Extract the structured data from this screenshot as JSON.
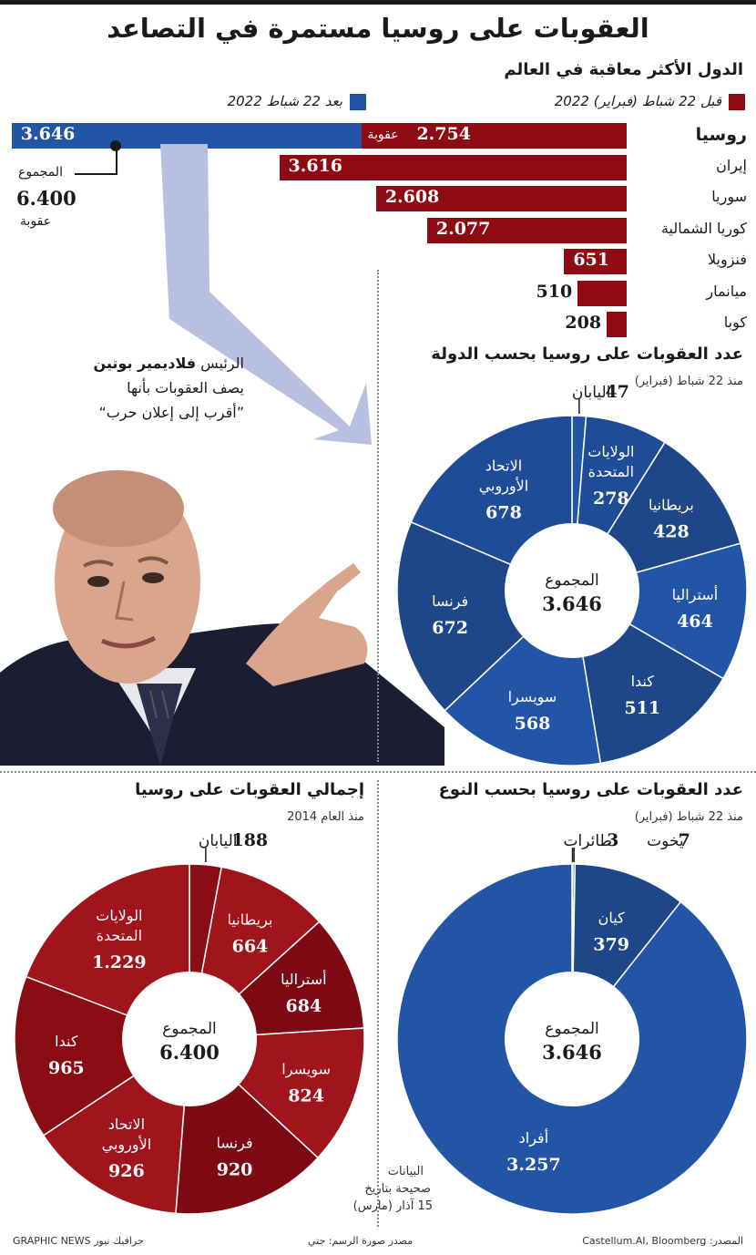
{
  "title": "العقوبات على روسيا مستمرة في التصاعد",
  "top_section": {
    "title": "الدول الأكثر معاقبة في العالم",
    "legend_before": "قبل 22 شباط (فبراير) 2022",
    "legend_after": "بعد 22 شباط 2022",
    "unit_label": "عقوبة",
    "total_label": "المجموع",
    "total_value": "6.400",
    "total_unit": "عقوبة",
    "after_value_label": "3.646"
  },
  "quote": {
    "line1_prefix": "الرئيس",
    "line1_name": "فلاديمير بوتين",
    "line2": "يصف العقوبات بأنها",
    "line3": "”أقرب إلى إعلان حرب“"
  },
  "pie_country_title": "عدد العقوبات على روسيا بحسب الدولة",
  "pie_country_subtitle": "منذ 22 شباط (فبراير)",
  "pie_type_title": "عدد العقوبات على روسيا بحسب النوع",
  "pie_type_subtitle": "منذ 22 شباط (فبراير)",
  "pie_total_title": "إجمالي العقوبات على روسيا",
  "pie_total_subtitle": "منذ العام 2014",
  "data_note": {
    "line1": "البيانات",
    "line2": "صحيحة بتاريخ",
    "line3": "15 آذار (مارس)"
  },
  "footer": {
    "brand": "جرافيك نيوز GRAPHIC NEWS",
    "photo": "مصدر صورة الرسم: جتي",
    "source": "المصدر: Castellum.AI, Bloomberg"
  },
  "colors": {
    "red": "#8f0b14",
    "red_alt": "#a0141c",
    "blue": "#2355a6",
    "blue_alt": "#1f4c97",
    "arrow": "#b7c0e0"
  },
  "chart_data": [
    {
      "type": "bar",
      "title": "الدول الأكثر معاقبة في العالم",
      "categories": [
        "روسيا",
        "إيران",
        "سوريا",
        "كوريا الشمالية",
        "فنزويلا",
        "ميانمار",
        "كوبا"
      ],
      "series": [
        {
          "name": "قبل 22 شباط (فبراير) 2022",
          "values": [
            2754,
            3616,
            2608,
            2077,
            651,
            510,
            208
          ],
          "labels": [
            "2.754",
            "3.616",
            "2.608",
            "2.077",
            "651",
            "510",
            "208"
          ]
        },
        {
          "name": "بعد 22 شباط 2022",
          "values": [
            3646,
            0,
            0,
            0,
            0,
            0,
            0
          ],
          "labels": [
            "3.646",
            "",
            "",
            "",
            "",
            "",
            ""
          ]
        }
      ],
      "xlim": [
        0,
        7000
      ]
    },
    {
      "type": "pie",
      "title": "عدد العقوبات على روسيا بحسب الدولة",
      "subtitle": "منذ 22 شباط (فبراير)",
      "center_label": "المجموع",
      "center_value": "3.646",
      "slices": [
        {
          "label": "اليابان",
          "value": 47,
          "display": "47",
          "outside": true
        },
        {
          "label": "الولايات المتحدة",
          "value": 278,
          "display": "278"
        },
        {
          "label": "بريطانيا",
          "value": 428,
          "display": "428"
        },
        {
          "label": "أستراليا",
          "value": 464,
          "display": "464"
        },
        {
          "label": "كندا",
          "value": 511,
          "display": "511"
        },
        {
          "label": "سويسرا",
          "value": 568,
          "display": "568"
        },
        {
          "label": "فرنسا",
          "value": 672,
          "display": "672"
        },
        {
          "label": "الاتحاد الأوروبي",
          "value": 678,
          "display": "678"
        }
      ]
    },
    {
      "type": "pie",
      "title": "إجمالي العقوبات على روسيا",
      "subtitle": "منذ العام 2014",
      "center_label": "المجموع",
      "center_value": "6.400",
      "slices": [
        {
          "label": "اليابان",
          "value": 188,
          "display": "188",
          "outside": true
        },
        {
          "label": "بريطانيا",
          "value": 664,
          "display": "664"
        },
        {
          "label": "أستراليا",
          "value": 684,
          "display": "684"
        },
        {
          "label": "سويسرا",
          "value": 824,
          "display": "824"
        },
        {
          "label": "فرنسا",
          "value": 920,
          "display": "920"
        },
        {
          "label": "الاتحاد الأوروبي",
          "value": 926,
          "display": "926"
        },
        {
          "label": "كندا",
          "value": 965,
          "display": "965"
        },
        {
          "label": "الولايات المتحدة",
          "value": 1229,
          "display": "1.229"
        }
      ]
    },
    {
      "type": "pie",
      "title": "عدد العقوبات على روسيا بحسب النوع",
      "subtitle": "منذ 22 شباط (فبراير)",
      "center_label": "المجموع",
      "center_value": "3.646",
      "slices": [
        {
          "label": "طائرات",
          "value": 3,
          "display": "3",
          "outside": true
        },
        {
          "label": "يخوت",
          "value": 7,
          "display": "7",
          "outside": true
        },
        {
          "label": "كيان",
          "value": 379,
          "display": "379"
        },
        {
          "label": "أفراد",
          "value": 3257,
          "display": "3.257"
        }
      ]
    }
  ]
}
